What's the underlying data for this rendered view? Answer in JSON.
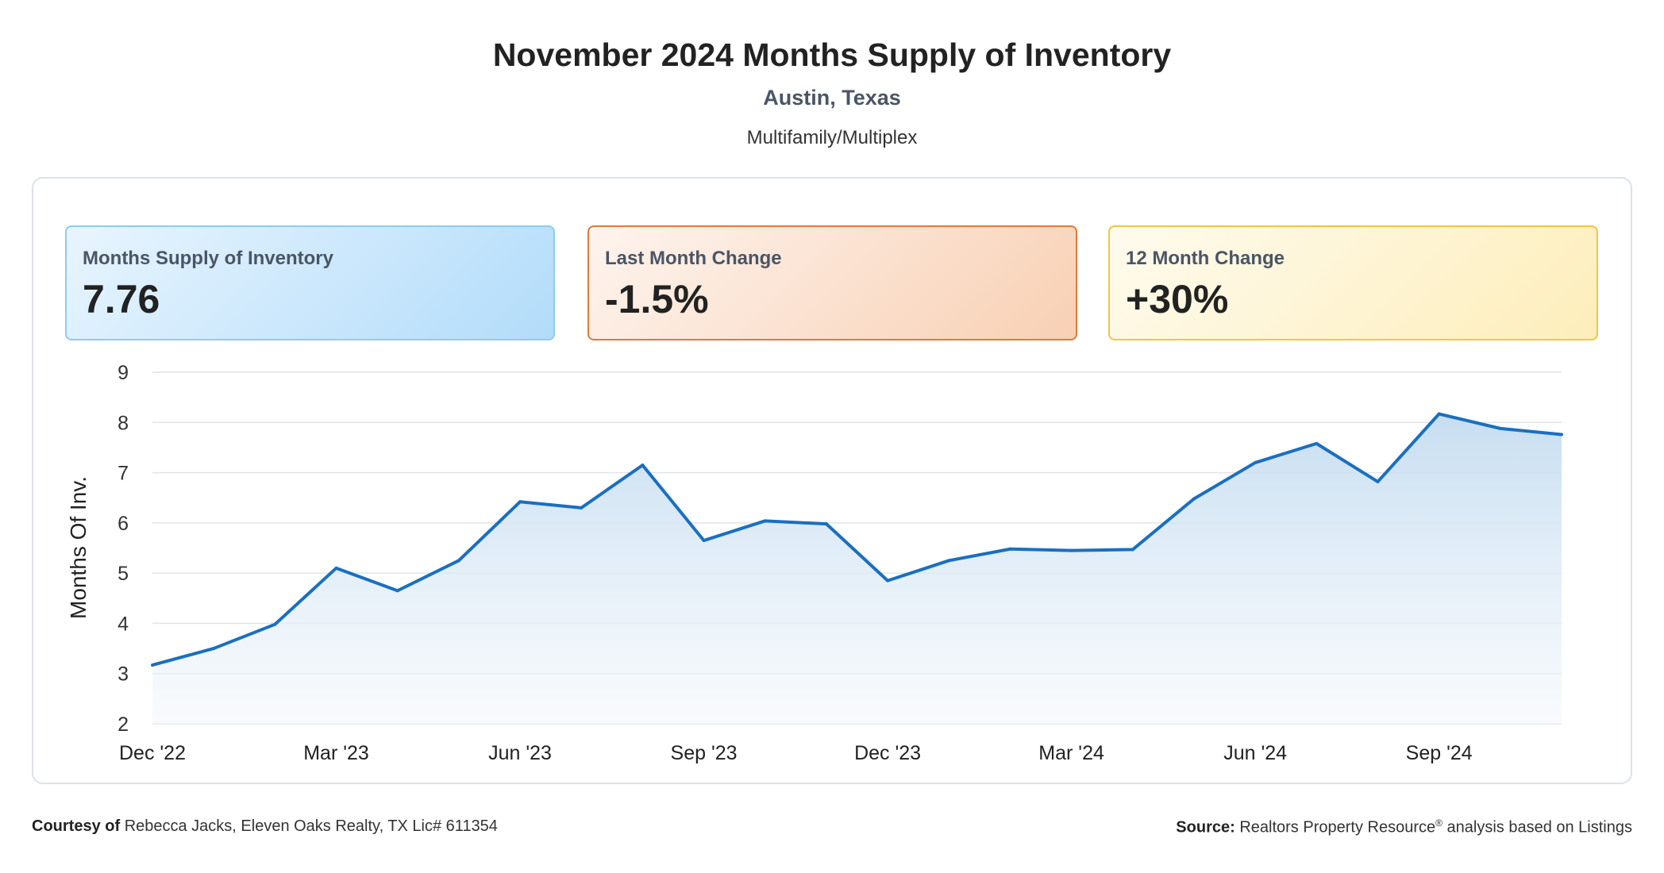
{
  "header": {
    "title": "November 2024 Months Supply of Inventory",
    "subtitle": "Austin, Texas",
    "category": "Multifamily/Multiplex"
  },
  "cards": [
    {
      "label": "Months Supply of Inventory",
      "value": "7.76",
      "color": "#8fcbf2"
    },
    {
      "label": "Last Month Change",
      "value": "-1.5%",
      "color": "#e07a3a"
    },
    {
      "label": "12 Month Change",
      "value": "+30%",
      "color": "#f4c542"
    }
  ],
  "chart_data": {
    "type": "area",
    "title": "",
    "xlabel": "",
    "ylabel": "Months Of Inv.",
    "ylim": [
      2,
      9
    ],
    "yticks": [
      2,
      3,
      4,
      5,
      6,
      7,
      8,
      9
    ],
    "grid": true,
    "line_color": "#1a6fc0",
    "x": [
      "Dec '22",
      "Jan '23",
      "Feb '23",
      "Mar '23",
      "Apr '23",
      "May '23",
      "Jun '23",
      "Jul '23",
      "Aug '23",
      "Sep '23",
      "Oct '23",
      "Nov '23",
      "Dec '23",
      "Jan '24",
      "Feb '24",
      "Mar '24",
      "Apr '24",
      "May '24",
      "Jun '24",
      "Jul '24",
      "Aug '24",
      "Sep '24",
      "Oct '24",
      "Nov '24"
    ],
    "xtick_labels": [
      "Dec '22",
      "Mar '23",
      "Jun '23",
      "Sep '23",
      "Dec '23",
      "Mar '24",
      "Jun '24",
      "Sep '24"
    ],
    "xtick_indices": [
      0,
      3,
      6,
      9,
      12,
      15,
      18,
      21
    ],
    "values": [
      3.17,
      3.5,
      3.98,
      5.1,
      4.65,
      5.25,
      6.42,
      6.3,
      7.15,
      5.65,
      6.04,
      5.98,
      4.85,
      5.25,
      5.48,
      5.45,
      5.47,
      6.48,
      7.2,
      7.58,
      6.82,
      8.17,
      7.88,
      7.76
    ]
  },
  "footer": {
    "courtesy_label": "Courtesy of",
    "courtesy_text": "Rebecca Jacks, Eleven Oaks Realty, TX Lic# 611354",
    "source_label": "Source:",
    "source_text_1": "Realtors Property Resource",
    "source_reg": "®",
    "source_text_2": "analysis based on Listings"
  }
}
